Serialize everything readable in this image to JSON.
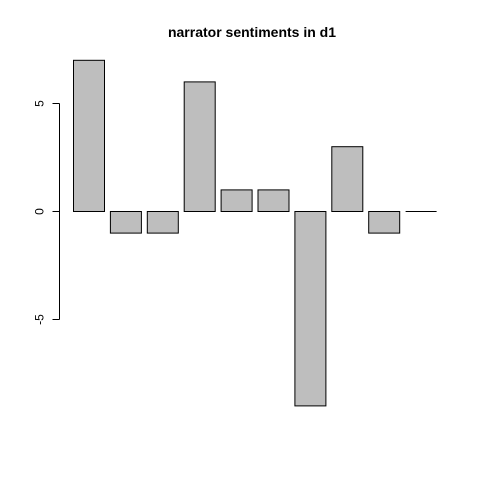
{
  "chart_data": {
    "type": "bar",
    "title": "narrator sentiments in d1",
    "xlabel": "",
    "ylabel": "",
    "values": [
      7,
      -1,
      -1,
      6,
      1,
      1,
      -9,
      3,
      -1,
      0
    ],
    "ylim": [
      -9,
      7
    ],
    "yticks": [
      -5,
      0,
      5
    ],
    "ytick_labels": [
      "-5",
      "0",
      "5"
    ],
    "bar_color": "#bebebe",
    "grid": false
  }
}
